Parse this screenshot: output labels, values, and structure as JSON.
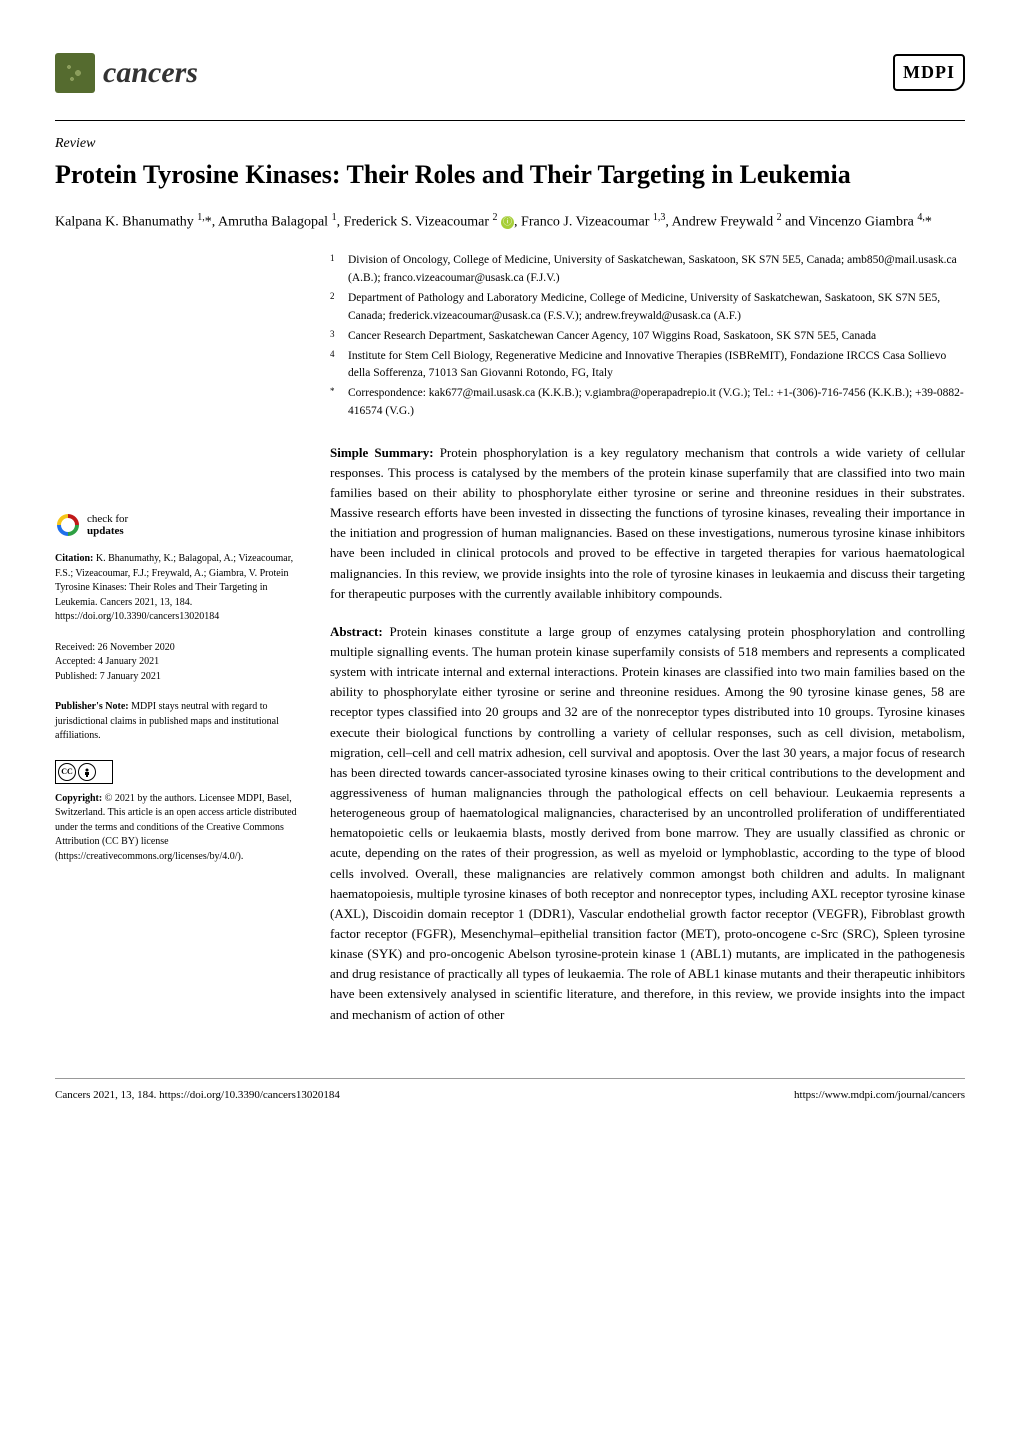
{
  "journal": {
    "name": "cancers",
    "publisher_logo": "MDPI"
  },
  "article": {
    "type": "Review",
    "title": "Protein Tyrosine Kinases: Their Roles and Their Targeting in Leukemia",
    "authors_html": "Kalpana K. Bhanumathy <sup>1,</sup>*, Amrutha Balagopal <sup>1</sup>, Frederick S. Vizeacoumar <sup>2</sup> <span class='orcid-icon' data-name='orcid-icon' data-interactable='false'></span>, Franco J. Vizeacoumar <sup>1,3</sup>, Andrew Freywald <sup>2</sup> and Vincenzo Giambra <sup>4,</sup>*"
  },
  "affiliations": [
    {
      "num": "1",
      "text": "Division of Oncology, College of Medicine, University of Saskatchewan, Saskatoon, SK S7N 5E5, Canada; amb850@mail.usask.ca (A.B.); franco.vizeacoumar@usask.ca (F.J.V.)"
    },
    {
      "num": "2",
      "text": "Department of Pathology and Laboratory Medicine, College of Medicine, University of Saskatchewan, Saskatoon, SK S7N 5E5, Canada; frederick.vizeacoumar@usask.ca (F.S.V.); andrew.freywald@usask.ca (A.F.)"
    },
    {
      "num": "3",
      "text": "Cancer Research Department, Saskatchewan Cancer Agency, 107 Wiggins Road, Saskatoon, SK S7N 5E5, Canada"
    },
    {
      "num": "4",
      "text": "Institute for Stem Cell Biology, Regenerative Medicine and Innovative Therapies (ISBReMIT), Fondazione IRCCS Casa Sollievo della Sofferenza, 71013 San Giovanni Rotondo, FG, Italy"
    },
    {
      "num": "*",
      "text": "Correspondence: kak677@mail.usask.ca (K.K.B.); v.giambra@operapadrepio.it (V.G.); Tel.: +1-(306)-716-7456 (K.K.B.); +39-0882-416574 (V.G.)"
    }
  ],
  "simple_summary": "Protein phosphorylation is a key regulatory mechanism that controls a wide variety of cellular responses. This process is catalysed by the members of the protein kinase superfamily that are classified into two main families based on their ability to phosphorylate either tyrosine or serine and threonine residues in their substrates. Massive research efforts have been invested in dissecting the functions of tyrosine kinases, revealing their importance in the initiation and progression of human malignancies. Based on these investigations, numerous tyrosine kinase inhibitors have been included in clinical protocols and proved to be effective in targeted therapies for various haematological malignancies. In this review, we provide insights into the role of tyrosine kinases in leukaemia and discuss their targeting for therapeutic purposes with the currently available inhibitory compounds.",
  "abstract": "Protein kinases constitute a large group of enzymes catalysing protein phosphorylation and controlling multiple signalling events. The human protein kinase superfamily consists of 518 members and represents a complicated system with intricate internal and external interactions. Protein kinases are classified into two main families based on the ability to phosphorylate either tyrosine or serine and threonine residues. Among the 90 tyrosine kinase genes, 58 are receptor types classified into 20 groups and 32 are of the nonreceptor types distributed into 10 groups. Tyrosine kinases execute their biological functions by controlling a variety of cellular responses, such as cell division, metabolism, migration, cell–cell and cell matrix adhesion, cell survival and apoptosis. Over the last 30 years, a major focus of research has been directed towards cancer-associated tyrosine kinases owing to their critical contributions to the development and aggressiveness of human malignancies through the pathological effects on cell behaviour. Leukaemia represents a heterogeneous group of haematological malignancies, characterised by an uncontrolled proliferation of undifferentiated hematopoietic cells or leukaemia blasts, mostly derived from bone marrow. They are usually classified as chronic or acute, depending on the rates of their progression, as well as myeloid or lymphoblastic, according to the type of blood cells involved. Overall, these malignancies are relatively common amongst both children and adults. In malignant haematopoiesis, multiple tyrosine kinases of both receptor and nonreceptor types, including AXL receptor tyrosine kinase (AXL), Discoidin domain receptor 1 (DDR1), Vascular endothelial growth factor receptor (VEGFR), Fibroblast growth factor receptor (FGFR), Mesenchymal–epithelial transition factor (MET), proto-oncogene c-Src (SRC), Spleen tyrosine kinase (SYK) and pro-oncogenic Abelson tyrosine-protein kinase 1 (ABL1) mutants, are implicated in the pathogenesis and drug resistance of practically all types of leukaemia. The role of ABL1 kinase mutants and their therapeutic inhibitors have been extensively analysed in scientific literature, and therefore, in this review, we provide insights into the impact and mechanism of action of other",
  "sidebar": {
    "check_updates": {
      "line1": "check for",
      "line2": "updates"
    },
    "citation_label": "Citation:",
    "citation": "K. Bhanumathy, K.; Balagopal, A.; Vizeacoumar, F.S.; Vizeacoumar, F.J.; Freywald, A.; Giambra, V. Protein Tyrosine Kinases: Their Roles and Their Targeting in Leukemia. Cancers 2021, 13, 184. https://doi.org/10.3390/cancers13020184",
    "received": "Received: 26 November 2020",
    "accepted": "Accepted: 4 January 2021",
    "published": "Published: 7 January 2021",
    "publishers_note_label": "Publisher's Note:",
    "publishers_note": "MDPI stays neutral with regard to jurisdictional claims in published maps and institutional affiliations.",
    "copyright_label": "Copyright:",
    "copyright": "© 2021 by the authors. Licensee MDPI, Basel, Switzerland. This article is an open access article distributed under the terms and conditions of the Creative Commons Attribution (CC BY) license (https://creativecommons.org/licenses/by/4.0/)."
  },
  "footer": {
    "left": "Cancers 2021, 13, 184. https://doi.org/10.3390/cancers13020184",
    "right": "https://www.mdpi.com/journal/cancers"
  },
  "labels": {
    "simple_summary": "Simple Summary:",
    "abstract": "Abstract:"
  }
}
